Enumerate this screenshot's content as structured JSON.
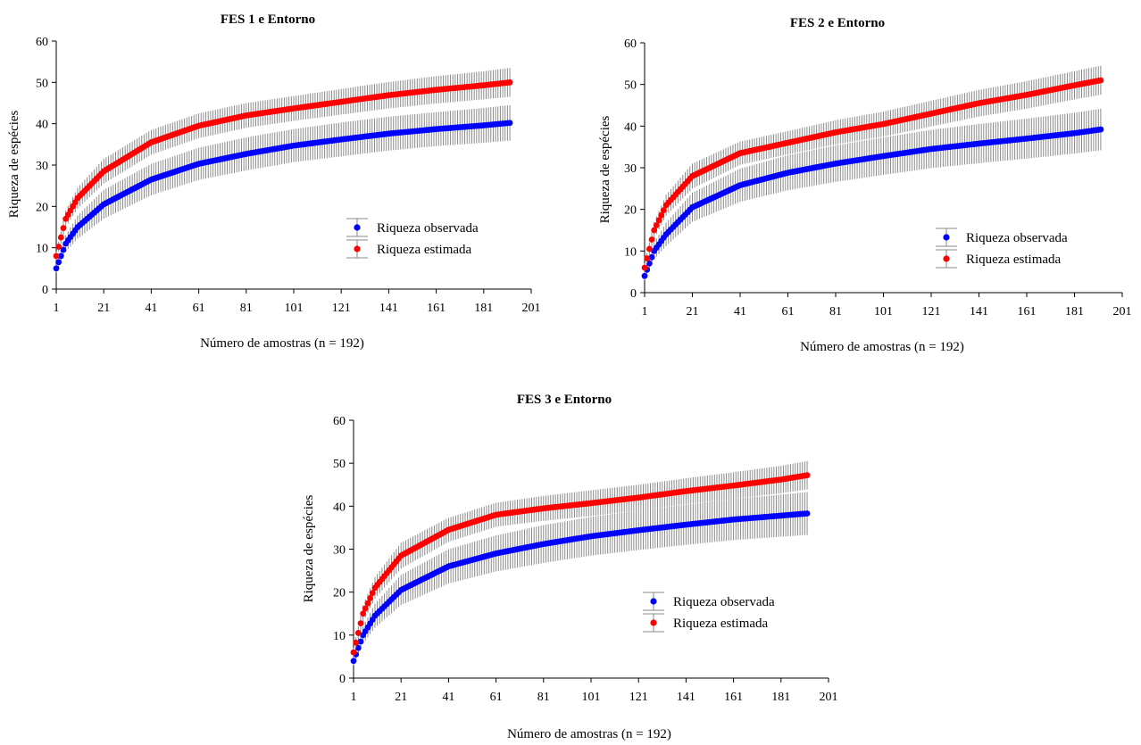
{
  "chart_data": [
    {
      "type": "scatter",
      "title": "FES 1 e Entorno",
      "xlabel": "Número de amostras (n = 192)",
      "ylabel": "Riqueza de espécies",
      "xlim": [
        1,
        201
      ],
      "ylim": [
        0,
        60
      ],
      "xticks": [
        "1",
        "21",
        "41",
        "61",
        "81",
        "101",
        "121",
        "141",
        "161",
        "181",
        "201"
      ],
      "yticks": [
        "0",
        "10",
        "20",
        "30",
        "40",
        "50",
        "60"
      ],
      "n_samples": 192,
      "legend_position": "center-right",
      "series": [
        {
          "name": "Riqueza observada",
          "color": "#0000ff",
          "x": [
            1,
            5,
            10,
            21,
            41,
            61,
            81,
            101,
            121,
            141,
            161,
            181,
            192
          ],
          "y": [
            5,
            11,
            15,
            20.5,
            26.5,
            30.3,
            32.7,
            34.7,
            36.2,
            37.6,
            38.7,
            39.6,
            40.2
          ],
          "err": [
            1,
            2,
            2.8,
            3.5,
            3.8,
            3.9,
            4,
            4,
            4.1,
            4.1,
            4.1,
            4.2,
            4.3
          ]
        },
        {
          "name": "Riqueza estimada",
          "color": "#ff0000",
          "x": [
            1,
            5,
            10,
            21,
            41,
            61,
            81,
            101,
            121,
            141,
            161,
            181,
            192
          ],
          "y": [
            8,
            17,
            22,
            28.5,
            35.5,
            39.5,
            42,
            43.7,
            45.3,
            46.9,
            48.2,
            49.3,
            50
          ],
          "err": [
            1,
            2,
            2.5,
            3,
            3,
            3,
            3,
            3,
            3.1,
            3.2,
            3.3,
            3.4,
            3.5
          ]
        }
      ]
    },
    {
      "type": "scatter",
      "title": "FES 2 e Entorno",
      "xlabel": "Número de amostras (n = 192)",
      "ylabel": "Riqueza de espécies",
      "xlim": [
        1,
        201
      ],
      "ylim": [
        0,
        60
      ],
      "xticks": [
        "1",
        "21",
        "41",
        "61",
        "81",
        "101",
        "121",
        "141",
        "161",
        "181",
        "201"
      ],
      "yticks": [
        "0",
        "10",
        "20",
        "30",
        "40",
        "50",
        "60"
      ],
      "n_samples": 192,
      "legend_position": "lower-right",
      "series": [
        {
          "name": "Riqueza observada",
          "color": "#0000ff",
          "x": [
            1,
            5,
            10,
            21,
            41,
            61,
            81,
            101,
            121,
            141,
            161,
            181,
            192
          ],
          "y": [
            4,
            10,
            14,
            20.5,
            25.8,
            28.8,
            31,
            32.8,
            34.5,
            35.8,
            37,
            38.3,
            39.2
          ],
          "err": [
            1,
            2,
            2.8,
            3.5,
            4,
            4.2,
            4.4,
            4.5,
            4.6,
            4.7,
            4.8,
            4.9,
            5
          ]
        },
        {
          "name": "Riqueza estimada",
          "color": "#ff0000",
          "x": [
            1,
            5,
            10,
            21,
            41,
            61,
            81,
            101,
            121,
            141,
            161,
            181,
            192
          ],
          "y": [
            6,
            15,
            21,
            28,
            33.5,
            36,
            38.5,
            40.5,
            43,
            45.5,
            47.5,
            49.8,
            51
          ],
          "err": [
            1,
            2,
            2.5,
            3,
            2.8,
            2.8,
            2.9,
            3,
            3.1,
            3.2,
            3.3,
            3.4,
            3.5
          ]
        }
      ]
    },
    {
      "type": "scatter",
      "title": "FES 3 e Entorno",
      "xlabel": "Número de amostras (n = 192)",
      "ylabel": "Riqueza de espécies",
      "xlim": [
        1,
        201
      ],
      "ylim": [
        0,
        60
      ],
      "xticks": [
        "1",
        "21",
        "41",
        "61",
        "81",
        "101",
        "121",
        "141",
        "161",
        "181",
        "201"
      ],
      "yticks": [
        "0",
        "10",
        "20",
        "30",
        "40",
        "50",
        "60"
      ],
      "n_samples": 192,
      "legend_position": "center-right",
      "series": [
        {
          "name": "Riqueza observada",
          "color": "#0000ff",
          "x": [
            1,
            5,
            10,
            21,
            41,
            61,
            81,
            101,
            121,
            141,
            161,
            181,
            192
          ],
          "y": [
            4,
            10,
            14.5,
            20.5,
            26,
            29,
            31.2,
            33,
            34.4,
            35.7,
            36.9,
            37.8,
            38.3
          ],
          "err": [
            1,
            2,
            2.8,
            3.5,
            4,
            4.2,
            4.4,
            4.5,
            4.6,
            4.7,
            4.8,
            4.9,
            5
          ]
        },
        {
          "name": "Riqueza estimada",
          "color": "#ff0000",
          "x": [
            1,
            5,
            10,
            21,
            41,
            61,
            81,
            101,
            121,
            141,
            161,
            181,
            192
          ],
          "y": [
            6,
            15,
            21,
            28.5,
            34.5,
            38,
            39.5,
            40.7,
            42,
            43.5,
            44.8,
            46.2,
            47.2
          ],
          "err": [
            1,
            2,
            2.5,
            3,
            2.8,
            2.8,
            2.9,
            3,
            3,
            3,
            3.1,
            3.2,
            3.3
          ]
        }
      ]
    }
  ]
}
